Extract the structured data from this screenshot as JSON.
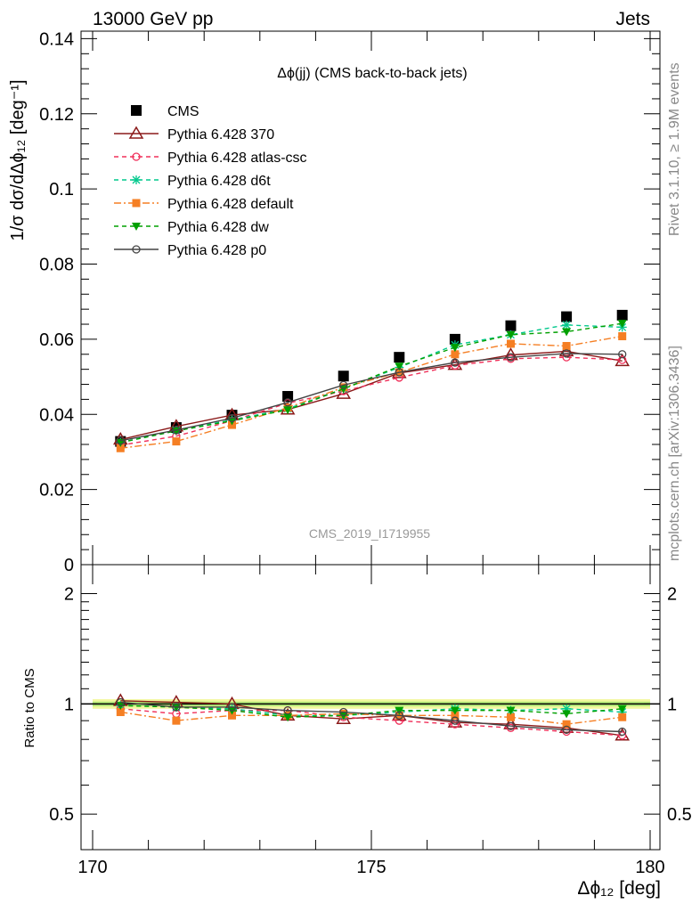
{
  "header": {
    "left": "13000 GeV pp",
    "right": "Jets"
  },
  "side_labels": {
    "rivet": "Rivet 3.1.10, ≥ 1.9M events",
    "mcplots": "mcplots.cern.ch [arXiv:1306.3436]"
  },
  "watermark": "CMS_2019_I1719955",
  "chart_data": [
    {
      "type": "scatter",
      "title": "Δϕ(jj) (CMS back-to-back jets)",
      "ylabel": "1/σ dσ/dΔϕ₁₂ [deg⁻¹]",
      "xlabel": "Δϕ₁₂ [deg]",
      "xlim": [
        170,
        180
      ],
      "ylim": [
        0,
        0.142
      ],
      "x_ticks": [
        "170",
        "175",
        "180"
      ],
      "y_ticks": [
        "0",
        "0.02",
        "0.04",
        "0.06",
        "0.08",
        "0.1",
        "0.12",
        "0.14"
      ],
      "legend_placement": "top-left",
      "x": [
        170.5,
        171.5,
        172.5,
        173.5,
        174.5,
        175.5,
        176.5,
        177.5,
        178.5,
        179.5
      ],
      "series": [
        {
          "name": "CMS",
          "color": "#000000",
          "marker": "filled-square",
          "line": "none",
          "values": [
            0.0328,
            0.0365,
            0.0398,
            0.0448,
            0.0502,
            0.0552,
            0.06,
            0.0636,
            0.066,
            0.0664
          ]
        },
        {
          "name": "Pythia 6.428 370",
          "color": "#8b1a1a",
          "marker": "open-triangle",
          "line": "solid",
          "values": [
            0.0333,
            0.0368,
            0.0398,
            0.0413,
            0.0455,
            0.051,
            0.0532,
            0.0558,
            0.0568,
            0.0542
          ]
        },
        {
          "name": "Pythia 6.428 atlas-csc",
          "color": "#f0305a",
          "marker": "open-circle",
          "line": "dashed",
          "values": [
            0.0318,
            0.0342,
            0.0383,
            0.043,
            0.0462,
            0.0498,
            0.053,
            0.0548,
            0.0552,
            0.0545
          ]
        },
        {
          "name": "Pythia 6.428 d6t",
          "color": "#00c88c",
          "marker": "star",
          "line": "dashed",
          "values": [
            0.0325,
            0.0358,
            0.0385,
            0.0415,
            0.0468,
            0.0525,
            0.0585,
            0.0612,
            0.0638,
            0.0632
          ]
        },
        {
          "name": "Pythia 6.428 default",
          "color": "#f57f24",
          "marker": "filled-square-small",
          "line": "dashdot",
          "values": [
            0.031,
            0.0328,
            0.0372,
            0.0418,
            0.0472,
            0.0512,
            0.056,
            0.0588,
            0.0582,
            0.0608
          ]
        },
        {
          "name": "Pythia 6.428 dw",
          "color": "#00a000",
          "marker": "filled-triangle-down",
          "line": "dashed",
          "values": [
            0.0325,
            0.0356,
            0.0383,
            0.0412,
            0.0468,
            0.0528,
            0.0578,
            0.0612,
            0.062,
            0.0642
          ]
        },
        {
          "name": "Pythia 6.428 p0",
          "color": "#444444",
          "marker": "open-circle",
          "line": "solid",
          "values": [
            0.033,
            0.0358,
            0.039,
            0.0432,
            0.0478,
            0.0512,
            0.0538,
            0.0552,
            0.0562,
            0.056
          ]
        }
      ]
    },
    {
      "type": "line",
      "title": "",
      "ylabel": "Ratio to CMS",
      "xlabel": "Δϕ₁₂ [deg]",
      "xlim": [
        170,
        180
      ],
      "ylim": [
        0.4,
        2.4
      ],
      "y_scale": "log",
      "y_ticks": [
        "0.5",
        "1",
        "2"
      ],
      "band": {
        "low": 0.97,
        "high": 1.03,
        "inner_low": 0.985,
        "inner_high": 1.015
      },
      "x": [
        170.5,
        171.5,
        172.5,
        173.5,
        174.5,
        175.5,
        176.5,
        177.5,
        178.5,
        179.5
      ],
      "series": [
        {
          "name": "Pythia 6.428 370",
          "values": [
            1.02,
            1.01,
            1.0,
            0.93,
            0.91,
            0.93,
            0.89,
            0.88,
            0.86,
            0.82
          ]
        },
        {
          "name": "Pythia 6.428 atlas-csc",
          "values": [
            0.97,
            0.94,
            0.96,
            0.96,
            0.92,
            0.9,
            0.88,
            0.86,
            0.84,
            0.82
          ]
        },
        {
          "name": "Pythia 6.428 d6t",
          "values": [
            0.99,
            0.98,
            0.97,
            0.93,
            0.93,
            0.95,
            0.97,
            0.96,
            0.97,
            0.95
          ]
        },
        {
          "name": "Pythia 6.428 default",
          "values": [
            0.95,
            0.9,
            0.93,
            0.93,
            0.94,
            0.93,
            0.93,
            0.92,
            0.88,
            0.92
          ]
        },
        {
          "name": "Pythia 6.428 dw",
          "values": [
            0.99,
            0.98,
            0.96,
            0.92,
            0.93,
            0.96,
            0.96,
            0.96,
            0.94,
            0.97
          ]
        },
        {
          "name": "Pythia 6.428 p0",
          "values": [
            1.01,
            0.98,
            0.98,
            0.96,
            0.95,
            0.93,
            0.9,
            0.87,
            0.85,
            0.84
          ]
        }
      ]
    }
  ]
}
